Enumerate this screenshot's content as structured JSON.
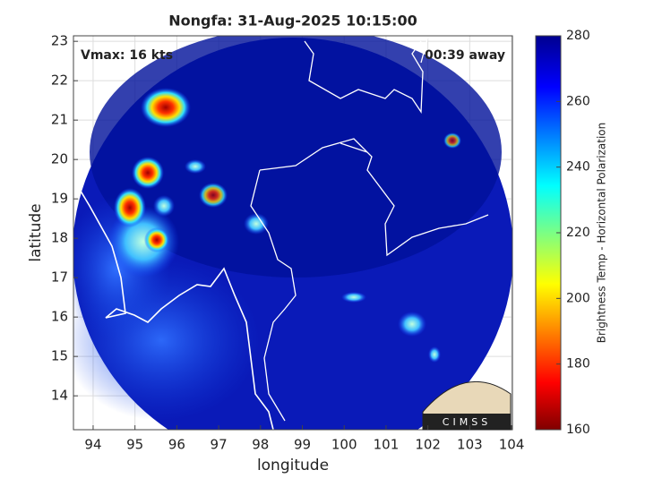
{
  "chart_data": {
    "type": "map",
    "title": "Nongfa: 31-Aug-2025 10:15:00",
    "annotations": [
      "Vmax: 16 kts",
      "00:39 away"
    ],
    "x_label": "longitude",
    "y_label": "latitude",
    "xlim": [
      93.53,
      104.02
    ],
    "ylim": [
      13.14,
      23.14
    ],
    "xticks": [
      94,
      95,
      96,
      97,
      98,
      99,
      100,
      101,
      102,
      103,
      104
    ],
    "yticks": [
      14,
      15,
      16,
      17,
      18,
      19,
      20,
      21,
      22,
      23
    ],
    "grid": true,
    "colorbar": {
      "label": "Brightness Temp - Horizontal Polarization",
      "lim": [
        160,
        280
      ],
      "ticks": [
        160,
        180,
        200,
        220,
        240,
        260,
        280
      ]
    },
    "logo": "CIMSS"
  }
}
